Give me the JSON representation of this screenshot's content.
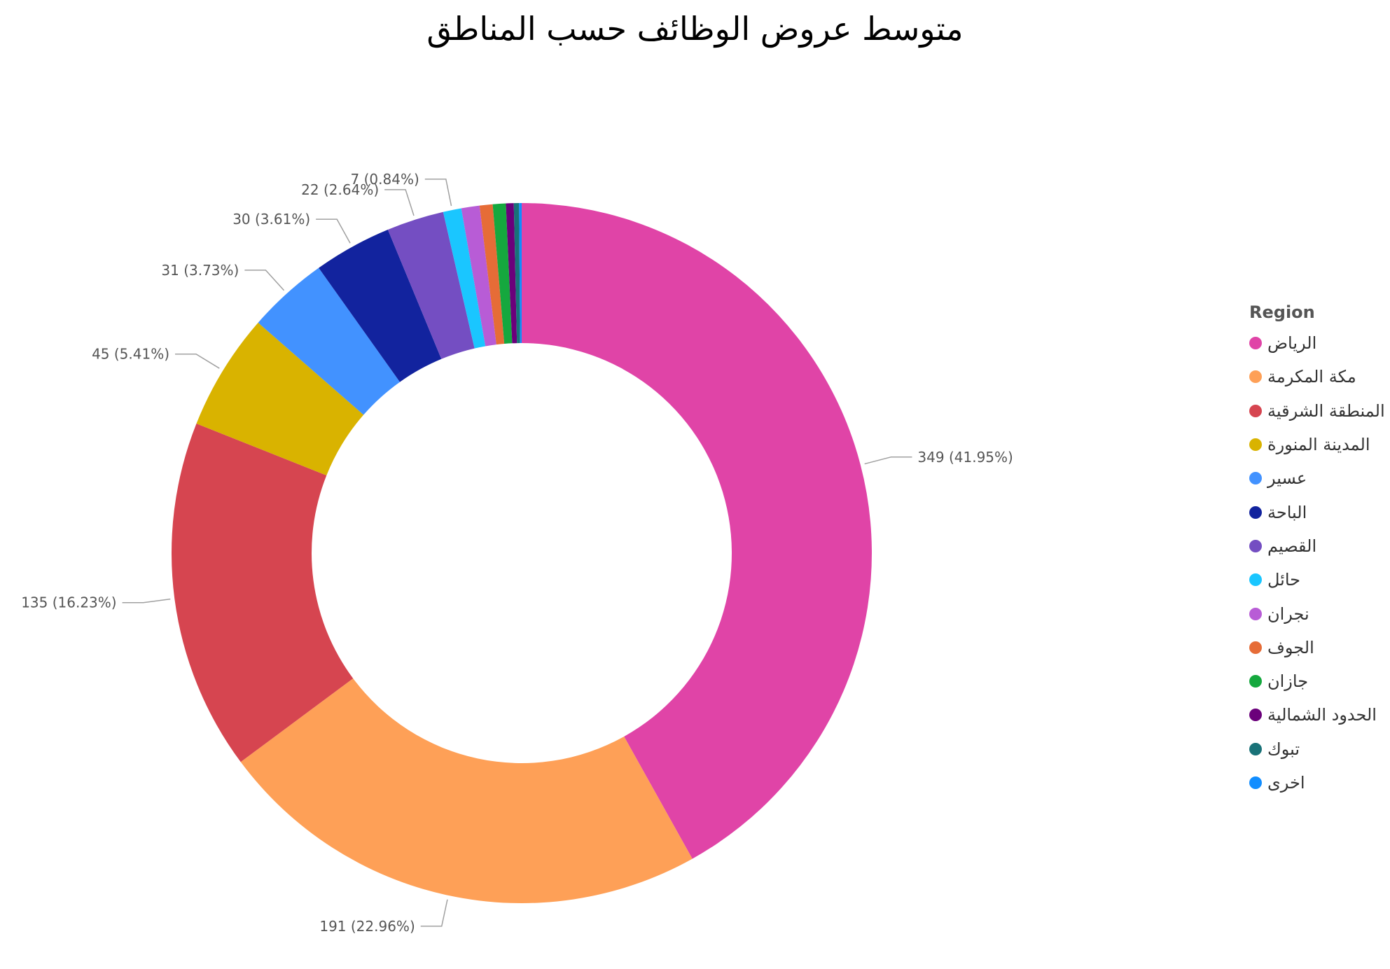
{
  "title": "متوسط عروض الوظائف حسب المناطق",
  "chart_data": {
    "type": "pie",
    "title": "متوسط عروض الوظائف حسب المناطق",
    "legend_title": "Region",
    "legend_position": "right",
    "donut": true,
    "slices": [
      {
        "label": "الرياض",
        "value": 349,
        "percent": "41.95%",
        "color": "#E044A7",
        "show_label": true
      },
      {
        "label": "مكة المكرمة",
        "value": 191,
        "percent": "22.96%",
        "color": "#FEA057",
        "show_label": true
      },
      {
        "label": "المنطقة الشرقية",
        "value": 135,
        "percent": "16.23%",
        "color": "#D64550",
        "show_label": true
      },
      {
        "label": "المدينة المنورة",
        "value": 45,
        "percent": "5.41%",
        "color": "#D9B300",
        "show_label": true
      },
      {
        "label": "عسير",
        "value": 31,
        "percent": "3.73%",
        "color": "#4292FF",
        "show_label": true
      },
      {
        "label": "الباحة",
        "value": 30,
        "percent": "3.61%",
        "color": "#12239E",
        "show_label": true
      },
      {
        "label": "القصيم",
        "value": 22,
        "percent": "2.64%",
        "color": "#744EC2",
        "show_label": true
      },
      {
        "label": "حائل",
        "value": 7,
        "percent": "0.84%",
        "color": "#1AC6FF",
        "show_label": true
      },
      {
        "label": "نجران",
        "value": 7,
        "percent": "0.84%",
        "color": "#B85CD6",
        "show_label": false
      },
      {
        "label": "الجوف",
        "value": 5,
        "percent": "0.60%",
        "color": "#E66C37",
        "show_label": false
      },
      {
        "label": "جازان",
        "value": 5,
        "percent": "0.60%",
        "color": "#15A83E",
        "show_label": false
      },
      {
        "label": "الحدود الشمالية",
        "value": 3,
        "percent": "0.36%",
        "color": "#6B007B",
        "show_label": false
      },
      {
        "label": "تبوك",
        "value": 2,
        "percent": "0.24%",
        "color": "#197278",
        "show_label": false
      },
      {
        "label": "اخرى",
        "value": 1,
        "percent": "0.12%",
        "color": "#118DFF",
        "show_label": false
      }
    ]
  }
}
